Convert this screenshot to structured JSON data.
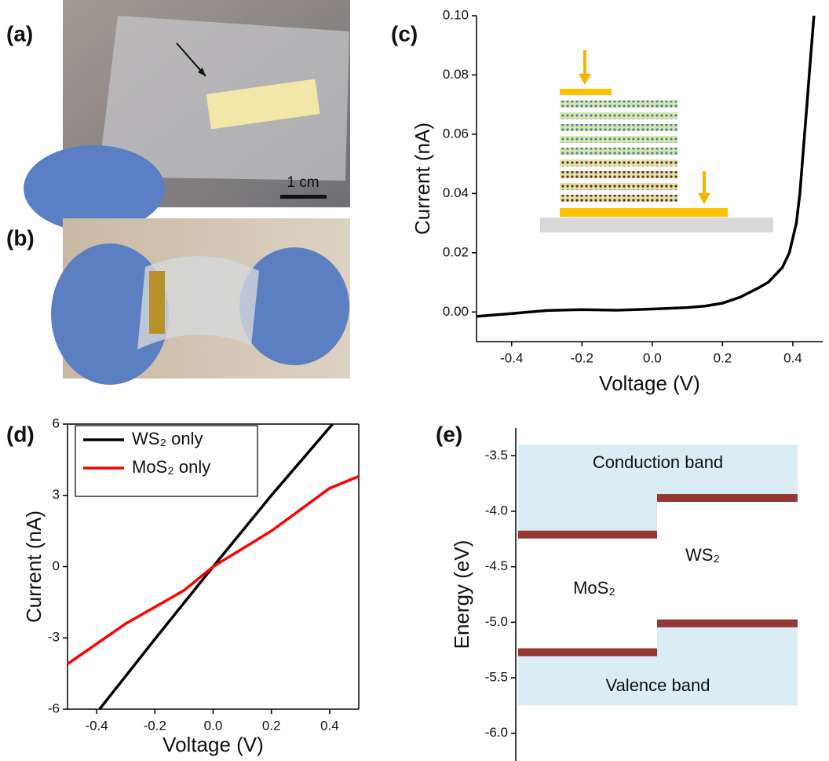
{
  "photos": [
    {
      "panel": "(a)",
      "scale_bar": "1 cm"
    },
    {
      "panel": "(b)"
    }
  ],
  "chart_data": [
    {
      "type": "line",
      "panel": "(c)",
      "x_label": "Voltage (V)",
      "y_label": "Current (nA)",
      "xlim": [
        -0.5,
        0.485
      ],
      "ylim": [
        -0.01,
        0.1
      ],
      "xticks": [
        -0.4,
        -0.2,
        {
          "value": 0,
          "label": "0.0"
        },
        0.2,
        0.4
      ],
      "yticks": [
        {
          "value": 0,
          "label": "0.00"
        },
        0.02,
        0.04,
        0.06,
        0.08,
        {
          "value": 0.1,
          "label": "0.10"
        }
      ],
      "series": [
        {
          "color": "#000000",
          "x": [
            -0.5,
            -0.4,
            -0.3,
            -0.2,
            -0.1,
            0,
            0.1,
            0.15,
            0.2,
            0.25,
            0.3,
            0.33,
            0.37,
            0.39,
            0.41,
            0.42,
            0.43,
            0.44,
            0.45,
            0.46
          ],
          "values": [
            -0.0015,
            -0.0005,
            0.0005,
            0.0008,
            0.0006,
            0.001,
            0.0015,
            0.002,
            0.003,
            0.005,
            0.008,
            0.01,
            0.015,
            0.02,
            0.03,
            0.04,
            0.055,
            0.07,
            0.085,
            0.1
          ]
        }
      ]
    },
    {
      "type": "line",
      "panel": "(d)",
      "x_label": "Voltage (V)",
      "y_label": "Current (nA)",
      "xlim": [
        -0.5,
        0.5
      ],
      "ylim": [
        -6,
        6
      ],
      "xticks": [
        -0.4,
        -0.2,
        {
          "value": 0,
          "label": "0.0"
        },
        0.2,
        0.4
      ],
      "yticks": [
        -6,
        -3,
        0,
        3,
        6
      ],
      "legend": "upper left",
      "series": [
        {
          "name": "WS₂ only",
          "color": "#000000",
          "x": [
            -0.39,
            -0.2,
            0,
            0.2,
            0.41
          ],
          "values": [
            -6,
            -3.05,
            0,
            3.0,
            6
          ]
        },
        {
          "name": "MoS₂ only",
          "color": "#ff0000",
          "x": [
            -0.5,
            -0.3,
            -0.1,
            0,
            0.2,
            0.4,
            0.5
          ],
          "values": [
            -4.1,
            -2.4,
            -1.0,
            0,
            1.5,
            3.3,
            3.8
          ]
        }
      ]
    },
    {
      "type": "band_diagram",
      "panel": "(e)",
      "y_label": "Energy (eV)",
      "ylim": [
        -6.25,
        -3.25
      ],
      "yticks": [
        -3.5,
        {
          "value": -4,
          "label": "-4.0"
        },
        -4.5,
        {
          "value": -5,
          "label": "-5.0"
        },
        -5.5,
        {
          "value": -6,
          "label": "-6.0"
        }
      ],
      "band_top": -3.4,
      "band_bottom": -5.75,
      "conduction_label": "Conduction band",
      "valence_label": "Valence band",
      "materials": [
        {
          "name": "MoS₂",
          "cb": -4.21,
          "vb": -5.27
        },
        {
          "name": "WS₂",
          "cb": -3.88,
          "vb": -5.01
        }
      ]
    }
  ]
}
